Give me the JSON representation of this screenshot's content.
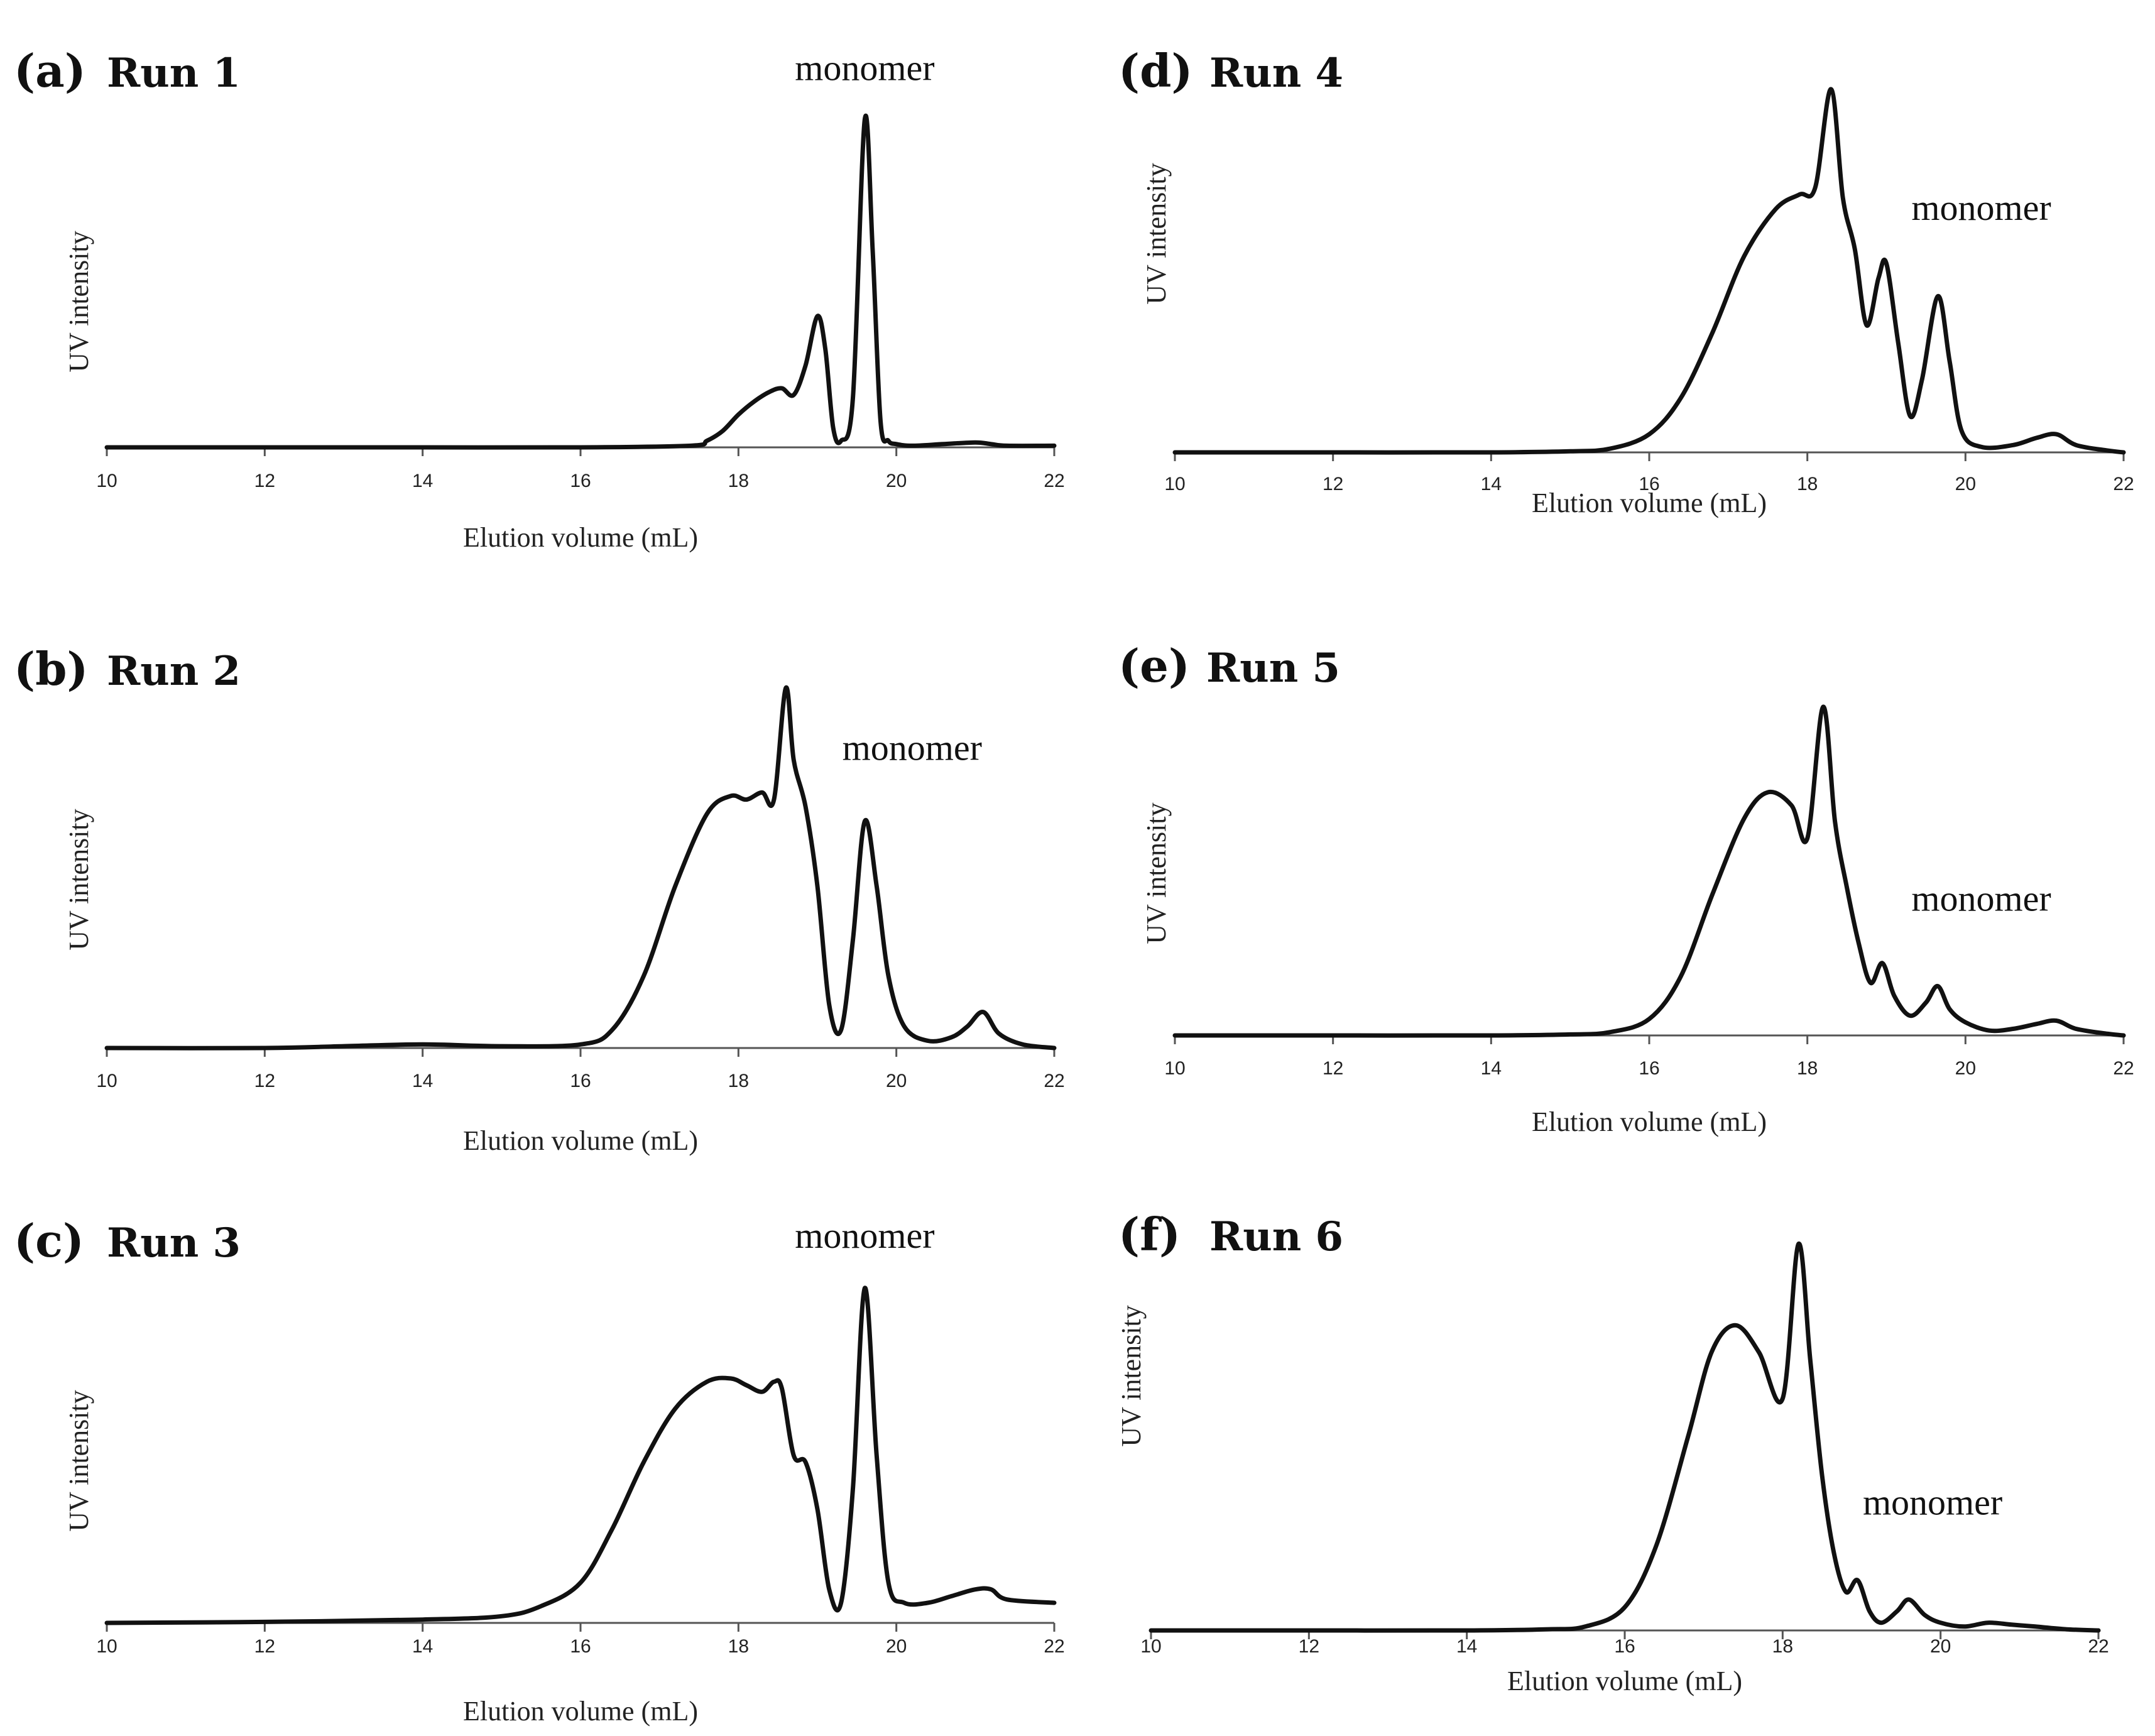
{
  "chart_data": [
    {
      "type": "line",
      "panel_letter": "(a)",
      "title": "Run 1",
      "xlabel": "Elution volume (mL)",
      "ylabel": "UV intensity",
      "xlim": [
        10,
        22
      ],
      "ylim": [
        0,
        1
      ],
      "xticks": [
        "10",
        "12",
        "14",
        "16",
        "18",
        "20",
        "22"
      ],
      "annotation": {
        "text": "monomer",
        "x": 19.6,
        "y": 1.12
      },
      "grid": false,
      "series": [
        {
          "name": "Run 1",
          "x": [
            10,
            12,
            14,
            16,
            17.4,
            17.6,
            17.8,
            18.0,
            18.2,
            18.4,
            18.55,
            18.7,
            18.85,
            19.0,
            19.1,
            19.2,
            19.3,
            19.45,
            19.6,
            19.7,
            19.8,
            19.9,
            20.0,
            20.2,
            20.6,
            21.0,
            21.2,
            21.4,
            22
          ],
          "y": [
            0,
            0,
            0,
            0,
            0.005,
            0.02,
            0.05,
            0.1,
            0.14,
            0.17,
            0.18,
            0.16,
            0.25,
            0.4,
            0.3,
            0.06,
            0.02,
            0.15,
            1.0,
            0.6,
            0.08,
            0.02,
            0.01,
            0.005,
            0.01,
            0.015,
            0.01,
            0.005,
            0.005
          ]
        }
      ]
    },
    {
      "type": "line",
      "panel_letter": "(b)",
      "title": "Run 2",
      "xlabel": "Elution volume (mL)",
      "ylabel": "UV intensity",
      "xlim": [
        10,
        22
      ],
      "ylim": [
        0,
        1
      ],
      "xticks": [
        "10",
        "12",
        "14",
        "16",
        "18",
        "20",
        "22"
      ],
      "annotation": {
        "text": "monomer",
        "x": 20.2,
        "y": 0.8
      },
      "grid": false,
      "series": [
        {
          "name": "Run 2",
          "x": [
            10,
            12,
            13,
            14,
            15,
            16,
            16.4,
            16.8,
            17.2,
            17.6,
            17.9,
            18.1,
            18.3,
            18.45,
            18.6,
            18.7,
            18.85,
            19.0,
            19.15,
            19.3,
            19.45,
            19.6,
            19.75,
            19.9,
            20.1,
            20.4,
            20.7,
            20.9,
            21.1,
            21.3,
            21.6,
            22
          ],
          "y": [
            0,
            0,
            0.005,
            0.01,
            0.005,
            0.01,
            0.05,
            0.2,
            0.45,
            0.65,
            0.7,
            0.69,
            0.71,
            0.69,
            1.0,
            0.8,
            0.67,
            0.45,
            0.12,
            0.05,
            0.3,
            0.63,
            0.45,
            0.2,
            0.06,
            0.02,
            0.03,
            0.06,
            0.1,
            0.04,
            0.01,
            0.0
          ]
        }
      ]
    },
    {
      "type": "line",
      "panel_letter": "(c)",
      "title": "Run 3",
      "xlabel": "Elution volume (mL)",
      "ylabel": "UV intensity",
      "xlim": [
        10,
        22
      ],
      "ylim": [
        0,
        1
      ],
      "xticks": [
        "10",
        "12",
        "14",
        "16",
        "18",
        "20",
        "22"
      ],
      "annotation": {
        "text": "monomer",
        "x": 19.6,
        "y": 1.12
      },
      "grid": false,
      "series": [
        {
          "name": "Run 3",
          "x": [
            10,
            12,
            14,
            15,
            15.5,
            16.0,
            16.4,
            16.8,
            17.2,
            17.6,
            17.9,
            18.1,
            18.3,
            18.45,
            18.55,
            18.7,
            18.85,
            19.0,
            19.15,
            19.3,
            19.45,
            19.6,
            19.75,
            19.9,
            20.1,
            20.4,
            20.7,
            21.0,
            21.2,
            21.4,
            22
          ],
          "y": [
            0,
            0.003,
            0.01,
            0.02,
            0.05,
            0.12,
            0.28,
            0.48,
            0.64,
            0.72,
            0.73,
            0.71,
            0.69,
            0.72,
            0.7,
            0.5,
            0.48,
            0.34,
            0.1,
            0.06,
            0.4,
            1.0,
            0.5,
            0.12,
            0.06,
            0.06,
            0.08,
            0.1,
            0.1,
            0.07,
            0.06
          ]
        }
      ]
    },
    {
      "type": "line",
      "panel_letter": "(d)",
      "title": "Run 4",
      "xlabel": "Elution volume (mL)",
      "ylabel": "UV intensity",
      "xlim": [
        10,
        22
      ],
      "ylim": [
        0,
        1
      ],
      "xticks": [
        "10",
        "12",
        "14",
        "16",
        "18",
        "20",
        "22"
      ],
      "annotation": {
        "text": "monomer",
        "x": 20.2,
        "y": 0.64
      },
      "grid": false,
      "series": [
        {
          "name": "Run 4",
          "x": [
            10,
            12,
            14,
            15,
            15.5,
            16.0,
            16.4,
            16.8,
            17.2,
            17.6,
            17.9,
            18.1,
            18.3,
            18.45,
            18.6,
            18.75,
            18.9,
            19.0,
            19.15,
            19.3,
            19.45,
            19.65,
            19.8,
            19.95,
            20.2,
            20.6,
            20.9,
            21.15,
            21.4,
            21.8,
            22
          ],
          "y": [
            0,
            0,
            0.0,
            0.003,
            0.01,
            0.05,
            0.15,
            0.33,
            0.54,
            0.67,
            0.71,
            0.73,
            1.0,
            0.7,
            0.56,
            0.35,
            0.48,
            0.52,
            0.3,
            0.1,
            0.2,
            0.43,
            0.25,
            0.06,
            0.015,
            0.02,
            0.04,
            0.05,
            0.02,
            0.005,
            0.0
          ]
        }
      ]
    },
    {
      "type": "line",
      "panel_letter": "(e)",
      "title": "Run 5",
      "xlabel": "Elution volume (mL)",
      "ylabel": "UV intensity",
      "xlim": [
        10,
        22
      ],
      "ylim": [
        0,
        1
      ],
      "xticks": [
        "10",
        "12",
        "14",
        "16",
        "18",
        "20",
        "22"
      ],
      "annotation": {
        "text": "monomer",
        "x": 20.2,
        "y": 0.38
      },
      "grid": false,
      "series": [
        {
          "name": "Run 5",
          "x": [
            10,
            12,
            14,
            15,
            15.5,
            16.0,
            16.4,
            16.8,
            17.2,
            17.5,
            17.8,
            18.0,
            18.2,
            18.35,
            18.5,
            18.65,
            18.8,
            18.95,
            19.1,
            19.3,
            19.5,
            19.65,
            19.8,
            20.0,
            20.3,
            20.6,
            20.9,
            21.15,
            21.4,
            21.8,
            22
          ],
          "y": [
            0,
            0,
            0.0,
            0.003,
            0.01,
            0.05,
            0.18,
            0.43,
            0.66,
            0.74,
            0.7,
            0.6,
            1.0,
            0.65,
            0.45,
            0.28,
            0.16,
            0.22,
            0.12,
            0.06,
            0.1,
            0.15,
            0.08,
            0.04,
            0.015,
            0.02,
            0.035,
            0.045,
            0.02,
            0.005,
            0.0
          ]
        }
      ]
    },
    {
      "type": "line",
      "panel_letter": "(f)",
      "title": "Run 6",
      "xlabel": "Elution volume (mL)",
      "ylabel": "UV intensity",
      "xlim": [
        10,
        22
      ],
      "ylim": [
        0,
        1
      ],
      "xticks": [
        "10",
        "12",
        "14",
        "16",
        "18",
        "20",
        "22"
      ],
      "annotation": {
        "text": "monomer",
        "x": 19.9,
        "y": 0.3
      },
      "grid": false,
      "series": [
        {
          "name": "Run 6",
          "x": [
            10,
            12,
            14,
            15,
            15.5,
            16.0,
            16.4,
            16.8,
            17.1,
            17.4,
            17.7,
            18.0,
            18.2,
            18.35,
            18.5,
            18.65,
            18.8,
            18.95,
            19.1,
            19.25,
            19.45,
            19.6,
            19.8,
            20.0,
            20.3,
            20.6,
            20.9,
            21.2,
            21.6,
            22
          ],
          "y": [
            0,
            0,
            0.0,
            0.003,
            0.01,
            0.06,
            0.22,
            0.5,
            0.72,
            0.79,
            0.72,
            0.6,
            1.0,
            0.7,
            0.4,
            0.2,
            0.1,
            0.13,
            0.05,
            0.02,
            0.05,
            0.08,
            0.04,
            0.02,
            0.01,
            0.02,
            0.015,
            0.01,
            0.003,
            0.0
          ]
        }
      ]
    }
  ]
}
